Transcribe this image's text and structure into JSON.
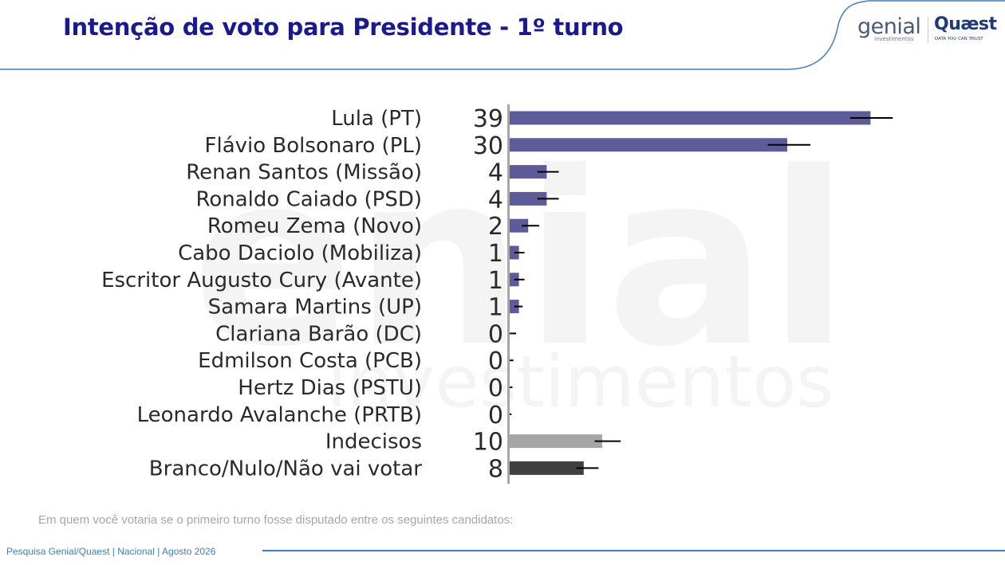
{
  "header": {
    "title": "Intenção de voto para Presidente - 1º turno"
  },
  "logos": {
    "genial": "genial",
    "genial_sub": "investimentos",
    "quaest": "Quæst",
    "quaest_sub": "DATA YOU CAN TRUST"
  },
  "footer": {
    "note": "Em quem você votaria se o primeiro turno fosse disputado entre os seguintes candidatos:",
    "source": "Pesquisa Genial/Quaest | Nacional | Agosto 2026"
  },
  "colors": {
    "title": "#1a1a8c",
    "candidate_bar": "#5d5b99",
    "undecided_bar": "#a6a6a6",
    "blank_bar": "#404040",
    "error_bar": "#000000",
    "accent_line": "#3f7fc0"
  },
  "chart_data": {
    "type": "bar",
    "orientation": "horizontal",
    "categories": [
      "Lula (PT)",
      "Flávio Bolsonaro (PL)",
      "Renan Santos (Missão)",
      "Ronaldo Caiado (PSD)",
      "Romeu Zema (Novo)",
      "Cabo Daciolo (Mobiliza)",
      "Escritor Augusto Cury (Avante)",
      "Samara Martins (UP)",
      "Clariana Barão (DC)",
      "Edmilson Costa (PCB)",
      "Hertz Dias (PSTU)",
      "Leonardo Avalanche (PRTB)",
      "Indecisos",
      "Branco/Nulo/Não vai votar"
    ],
    "values": [
      39,
      30,
      4,
      4,
      2,
      1,
      1,
      1,
      0,
      0,
      0,
      0,
      10,
      8
    ],
    "value_labels": [
      "39",
      "30",
      "4",
      "4",
      "2",
      "1",
      "1",
      "1",
      "0",
      "0",
      "0",
      "0",
      "10",
      "8"
    ],
    "error_intervals": [
      [
        36.8,
        41.4
      ],
      [
        27.9,
        32.5
      ],
      [
        3.0,
        5.3
      ],
      [
        3.0,
        5.3
      ],
      [
        1.3,
        3.2
      ],
      [
        0.5,
        1.6
      ],
      [
        0.5,
        1.6
      ],
      [
        0.5,
        1.4
      ],
      [
        0.0,
        0.7
      ],
      [
        0.0,
        0.4
      ],
      [
        0.0,
        0.3
      ],
      [
        0.0,
        0.2
      ],
      [
        9.2,
        12.0
      ],
      [
        7.2,
        9.6
      ]
    ],
    "bar_color_groups": [
      "candidate",
      "candidate",
      "candidate",
      "candidate",
      "candidate",
      "candidate",
      "candidate",
      "candidate",
      "candidate",
      "candidate",
      "candidate",
      "candidate",
      "undecided",
      "blank"
    ],
    "xlim": [
      0,
      45
    ],
    "grid": false,
    "legend": "none"
  }
}
